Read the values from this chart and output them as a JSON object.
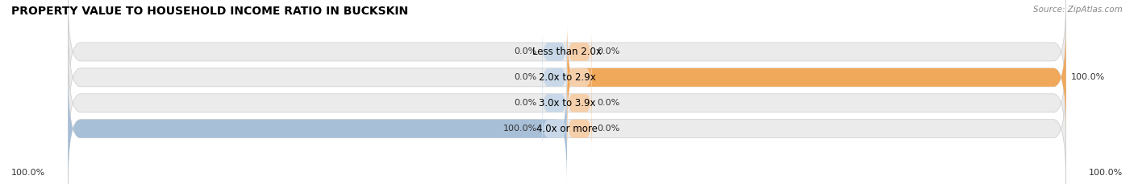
{
  "title": "PROPERTY VALUE TO HOUSEHOLD INCOME RATIO IN BUCKSKIN",
  "source": "Source: ZipAtlas.com",
  "categories": [
    "Less than 2.0x",
    "2.0x to 2.9x",
    "3.0x to 3.9x",
    "4.0x or more"
  ],
  "without_mortgage": [
    0.0,
    0.0,
    0.0,
    100.0
  ],
  "with_mortgage": [
    0.0,
    100.0,
    0.0,
    0.0
  ],
  "color_without": "#a8bfd8",
  "color_with": "#f0a85a",
  "color_with_light": "#f5cfaa",
  "color_without_light": "#c8d8e8",
  "bar_bg_color": "#ebebeb",
  "title_fontsize": 10,
  "source_fontsize": 7.5,
  "label_fontsize": 8,
  "cat_fontsize": 8.5,
  "legend_fontsize": 8,
  "bottom_left": "100.0%",
  "bottom_right": "100.0%"
}
